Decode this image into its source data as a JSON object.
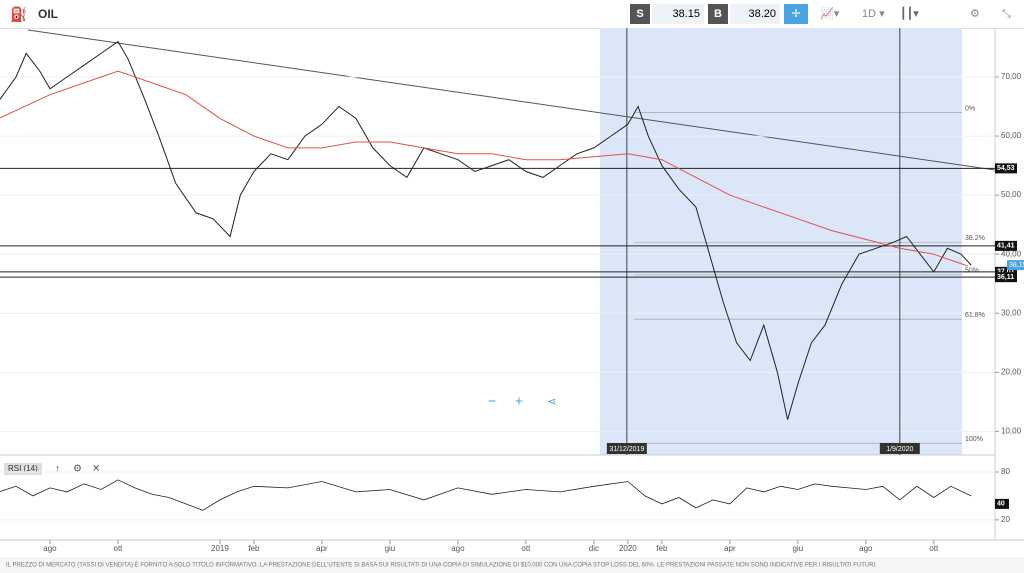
{
  "header": {
    "symbol": "OIL",
    "sell_label": "S",
    "sell_price": "38.15",
    "buy_label": "B",
    "buy_price": "38.20",
    "timeframe": "1D"
  },
  "chart_data": [
    {
      "type": "line",
      "xlim": [
        -0.47,
        28.8
      ],
      "ylim": [
        6,
        78.3
      ],
      "xticks": [
        {
          "value": 1,
          "label": "ago"
        },
        {
          "value": 3,
          "label": "ott"
        },
        {
          "value": 6,
          "label": "2019"
        },
        {
          "value": 7,
          "label": "feb"
        },
        {
          "value": 9,
          "label": "apr"
        },
        {
          "value": 11,
          "label": "giu"
        },
        {
          "value": 13,
          "label": "ago"
        },
        {
          "value": 15,
          "label": "ott"
        },
        {
          "value": 17,
          "label": "dic"
        },
        {
          "value": 18,
          "label": "2020"
        },
        {
          "value": 19,
          "label": "feb"
        },
        {
          "value": 21,
          "label": "apr"
        },
        {
          "value": 23,
          "label": "giu"
        },
        {
          "value": 25,
          "label": "ago"
        },
        {
          "value": 27,
          "label": "ott"
        }
      ],
      "yticks": [
        {
          "value": 10,
          "label": "10,00"
        },
        {
          "value": 20,
          "label": "20,00"
        },
        {
          "value": 30,
          "label": "30,00"
        },
        {
          "value": 40,
          "label": "40,00"
        },
        {
          "value": 50,
          "label": "50,00"
        },
        {
          "value": 60,
          "label": "60,00"
        },
        {
          "value": 70,
          "label": "70,00"
        }
      ],
      "series": [
        {
          "color": "#222222",
          "x": [
            -0.5,
            0,
            0.3,
            0.7,
            1,
            1.5,
            2,
            2.5,
            3,
            3.3,
            3.8,
            4.2,
            4.7,
            5.3,
            5.8,
            6.3,
            6.6,
            7,
            7.5,
            8,
            8.5,
            9,
            9.5,
            10,
            10.5,
            11,
            11.5,
            12,
            12.5,
            13,
            13.5,
            14,
            14.5,
            15,
            15.5,
            16,
            16.5,
            17,
            17.5,
            18,
            18.3,
            18.6,
            19,
            19.5,
            20,
            20.3,
            20.8,
            21.2,
            21.6,
            22,
            22.4,
            22.7,
            23,
            23.4,
            23.8,
            24.3,
            24.8,
            25.3,
            25.8,
            26.2,
            26.6,
            27,
            27.4,
            27.8,
            28.1
          ],
          "values": [
            66,
            70,
            74,
            71,
            68,
            70,
            72,
            74,
            76,
            73,
            66,
            60,
            52,
            47,
            46,
            43,
            50,
            54,
            57,
            56,
            60,
            62,
            65,
            63,
            58,
            55,
            53,
            58,
            57,
            56,
            54,
            55,
            56,
            54,
            53,
            55,
            57,
            58,
            60,
            62,
            65,
            60,
            55,
            51,
            48,
            42,
            32,
            25,
            22,
            28,
            20,
            12,
            18,
            25,
            28,
            35,
            40,
            41,
            42,
            43,
            40,
            37,
            41,
            40,
            38.15
          ]
        },
        {
          "color": "#e05050",
          "x": [
            -0.5,
            1,
            2,
            3,
            4,
            5,
            6,
            7,
            8,
            9,
            10,
            11,
            12,
            13,
            14,
            15,
            16,
            17,
            18,
            19,
            20,
            21,
            22,
            23,
            24,
            25,
            26,
            27,
            28
          ],
          "values": [
            63,
            67,
            69,
            71,
            69,
            67,
            63,
            60,
            58,
            58,
            59,
            59,
            58,
            57,
            57,
            56,
            56,
            56.5,
            57,
            56,
            53,
            50,
            48,
            46,
            44,
            42.5,
            41,
            40,
            38
          ]
        }
      ],
      "levels": [
        {
          "value": 54.53,
          "label": "54,53"
        },
        {
          "value": 41.41,
          "label": "41,41"
        },
        {
          "value": 37.01,
          "label": "37,01"
        },
        {
          "value": 36.11,
          "label": "36,11"
        }
      ],
      "price_badge": {
        "value": 38.15,
        "label": "38,15"
      },
      "fib": [
        {
          "value": 64,
          "label": "0%"
        },
        {
          "value": 42,
          "label": "38.2%"
        },
        {
          "value": 36.5,
          "label": "50%"
        },
        {
          "value": 29,
          "label": "61.8%"
        },
        {
          "value": 8,
          "label": "100%"
        }
      ],
      "markers": [
        {
          "value": 17.97,
          "label": "31/12/2019"
        },
        {
          "value": 26,
          "label": "1/9/2020"
        }
      ]
    },
    {
      "type": "line",
      "title": "RSI (14)",
      "xlim": [
        -0.47,
        28.8
      ],
      "ylim": [
        1,
        95
      ],
      "yticks": [
        20,
        80
      ],
      "badge": 40,
      "x": [
        -0.5,
        0,
        0.5,
        1,
        1.5,
        2,
        2.5,
        3,
        3.5,
        4,
        4.5,
        5,
        5.5,
        6,
        6.5,
        7,
        8,
        9,
        10,
        11,
        12,
        13,
        14,
        15,
        16,
        17,
        18,
        18.5,
        19,
        19.5,
        20,
        20.5,
        21,
        21.5,
        22,
        22.5,
        23,
        23.5,
        24,
        24.5,
        25,
        25.5,
        26,
        26.5,
        27,
        27.5,
        28.1
      ],
      "values": [
        55,
        62,
        50,
        60,
        55,
        65,
        58,
        70,
        60,
        52,
        48,
        40,
        32,
        45,
        55,
        62,
        60,
        68,
        55,
        58,
        45,
        60,
        52,
        58,
        55,
        62,
        68,
        50,
        40,
        48,
        35,
        45,
        40,
        60,
        55,
        62,
        58,
        65,
        62,
        60,
        58,
        62,
        45,
        62,
        48,
        62,
        50
      ]
    }
  ],
  "footer": {
    "disclaimer": "IL PREZZO DI MERCATO (TASSI DI VENDITA) È FORNITO A SOLO TITOLO INFORMATIVO. LA PRESTAZIONE DELL'UTENTE SI BASA SUI RISULTATI DI UNA COPIA DI SIMULAZIONE DI $10,000 CON UNA COPIA STOP LOSS DEL 60%. LE PRESTAZIONI PASSATE NON SONO INDICATIVE PER I RISULTATI FUTURI."
  }
}
